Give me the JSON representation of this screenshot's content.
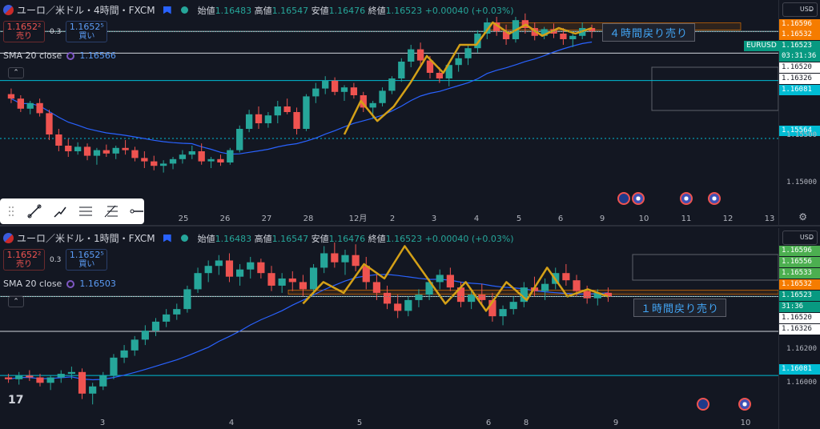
{
  "colors": {
    "up": "#26a69a",
    "down": "#ef5350",
    "sma": "#2962ff",
    "zig": "#d4a017",
    "bg": "#131722",
    "bull": "#089981"
  },
  "panes": [
    {
      "id": "4h",
      "title": "ユーロ／米ドル・4時間・FXCM",
      "ohlc": {
        "o_label": "始値",
        "o": "1.16483",
        "h_label": "高値",
        "h": "1.16547",
        "l_label": "安値",
        "l": "1.16476",
        "c_label": "終値",
        "c": "1.16523",
        "chg": "+0.00040 (+0.03%)"
      },
      "sell": {
        "price": "1.1652²",
        "label": "売り"
      },
      "buy": {
        "price": "1.1652⁵",
        "label": "買い"
      },
      "spread": "0.3",
      "sma_label": "SMA 20 close",
      "sma_value": "1.16566",
      "currency": "USD",
      "note": "４時間戻り売り",
      "price_labels": [
        {
          "text": "1.16596",
          "bg": "#f57c00"
        },
        {
          "text": "1.16532",
          "bg": "#f57c00"
        },
        {
          "text": "1.16523",
          "bg": "#089981"
        },
        {
          "text": "03:31:36",
          "bg": "#089981"
        },
        {
          "text": "1.16520",
          "bg": "#ffffff",
          "fg": "#131722"
        },
        {
          "text": "1.16326",
          "bg": "#ffffff",
          "fg": "#131722"
        },
        {
          "text": "1.16081",
          "bg": "#00bcd4"
        },
        {
          "text": "1.15564",
          "bg": "#00bcd4"
        }
      ],
      "symbol_tag": "EURUSD",
      "ticks": [
        "1.15500",
        "1.15000"
      ],
      "dates": [
        "25",
        "26",
        "27",
        "28",
        "12月",
        "2",
        "3",
        "4",
        "5",
        "6",
        "9",
        "10",
        "11",
        "12",
        "13"
      ],
      "candles": [
        [
          1.1596,
          1.1601,
          1.1588,
          1.1592
        ],
        [
          1.1592,
          1.1595,
          1.158,
          1.1583
        ],
        [
          1.1583,
          1.159,
          1.1578,
          1.1588
        ],
        [
          1.1588,
          1.1592,
          1.1576,
          1.1579
        ],
        [
          1.1579,
          1.1582,
          1.1555,
          1.156
        ],
        [
          1.156,
          1.1565,
          1.1545,
          1.155
        ],
        [
          1.155,
          1.1556,
          1.154,
          1.1545
        ],
        [
          1.1545,
          1.1553,
          1.1542,
          1.1549
        ],
        [
          1.1549,
          1.1552,
          1.1537,
          1.1541
        ],
        [
          1.1541,
          1.1548,
          1.1533,
          1.1546
        ],
        [
          1.1546,
          1.1551,
          1.154,
          1.1543
        ],
        [
          1.1543,
          1.155,
          1.1538,
          1.1548
        ],
        [
          1.1548,
          1.1555,
          1.1542,
          1.1546
        ],
        [
          1.1546,
          1.1549,
          1.1536,
          1.1539
        ],
        [
          1.1539,
          1.1545,
          1.153,
          1.1536
        ],
        [
          1.1536,
          1.1541,
          1.1528,
          1.1532
        ],
        [
          1.1532,
          1.1537,
          1.1526,
          1.1534
        ],
        [
          1.1534,
          1.154,
          1.1529,
          1.1538
        ],
        [
          1.1538,
          1.1546,
          1.1534,
          1.1542
        ],
        [
          1.1542,
          1.155,
          1.1538,
          1.1545
        ],
        [
          1.1545,
          1.1552,
          1.1533,
          1.1536
        ],
        [
          1.1536,
          1.154,
          1.153,
          1.1538
        ],
        [
          1.1538,
          1.1542,
          1.1532,
          1.1535
        ],
        [
          1.1535,
          1.1548,
          1.1533,
          1.1546
        ],
        [
          1.1546,
          1.1568,
          1.1544,
          1.1565
        ],
        [
          1.1565,
          1.1582,
          1.1562,
          1.1578
        ],
        [
          1.1578,
          1.1585,
          1.1565,
          1.157
        ],
        [
          1.157,
          1.158,
          1.1566,
          1.1577
        ],
        [
          1.1577,
          1.159,
          1.157,
          1.1585
        ],
        [
          1.1585,
          1.1592,
          1.1578,
          1.158
        ],
        [
          1.158,
          1.1584,
          1.156,
          1.1565
        ],
        [
          1.1565,
          1.1596,
          1.1563,
          1.1594
        ],
        [
          1.1594,
          1.1606,
          1.1588,
          1.1601
        ],
        [
          1.1601,
          1.1612,
          1.1596,
          1.1608
        ],
        [
          1.1608,
          1.1611,
          1.1595,
          1.1598
        ],
        [
          1.1598,
          1.1604,
          1.159,
          1.1602
        ],
        [
          1.1602,
          1.1606,
          1.1592,
          1.1595
        ],
        [
          1.1595,
          1.1598,
          1.158,
          1.1584
        ],
        [
          1.1584,
          1.159,
          1.1574,
          1.1588
        ],
        [
          1.1588,
          1.1602,
          1.1585,
          1.1599
        ],
        [
          1.1599,
          1.1612,
          1.1596,
          1.161
        ],
        [
          1.161,
          1.1628,
          1.1607,
          1.1625
        ],
        [
          1.1625,
          1.164,
          1.162,
          1.1636
        ],
        [
          1.1636,
          1.1642,
          1.1622,
          1.1626
        ],
        [
          1.1626,
          1.163,
          1.161,
          1.1615
        ],
        [
          1.1615,
          1.162,
          1.1606,
          1.161
        ],
        [
          1.161,
          1.1625,
          1.1603,
          1.1622
        ],
        [
          1.1622,
          1.1632,
          1.1616,
          1.1628
        ],
        [
          1.1628,
          1.164,
          1.1622,
          1.1637
        ],
        [
          1.1637,
          1.1653,
          1.1633,
          1.165
        ],
        [
          1.165,
          1.1664,
          1.1645,
          1.166
        ],
        [
          1.166,
          1.1665,
          1.1648,
          1.1652
        ],
        [
          1.1652,
          1.1658,
          1.164,
          1.1645
        ],
        [
          1.1645,
          1.1665,
          1.1642,
          1.1662
        ],
        [
          1.1662,
          1.1668,
          1.165,
          1.1655
        ],
        [
          1.1655,
          1.166,
          1.1644,
          1.1648
        ],
        [
          1.1648,
          1.1656,
          1.1645,
          1.1654
        ],
        [
          1.1654,
          1.1659,
          1.1646,
          1.165
        ],
        [
          1.165,
          1.1655,
          1.164,
          1.1645
        ],
        [
          1.1645,
          1.1652,
          1.1638,
          1.1648
        ],
        [
          1.1648,
          1.166,
          1.1645,
          1.1655
        ],
        [
          1.1655,
          1.1658,
          1.1646,
          1.1652
        ]
      ]
    },
    {
      "id": "1h",
      "title": "ユーロ／米ドル・1時間・FXCM",
      "ohlc": {
        "o_label": "始値",
        "o": "1.16483",
        "h_label": "高値",
        "h": "1.16547",
        "l_label": "安値",
        "l": "1.16476",
        "c_label": "終値",
        "c": "1.16523",
        "chg": "+0.00040 (+0.03%)"
      },
      "sell": {
        "price": "1.1652²",
        "label": "売り"
      },
      "buy": {
        "price": "1.1652⁵",
        "label": "買い"
      },
      "spread": "0.3",
      "sma_label": "SMA 20 close",
      "sma_value": "1.16503",
      "currency": "USD",
      "note": "１時間戻り売り",
      "price_labels": [
        {
          "text": "1.16596",
          "bg": "#4caf50"
        },
        {
          "text": "1.16556",
          "bg": "#4caf50"
        },
        {
          "text": "1.16533",
          "bg": "#4caf50"
        },
        {
          "text": "1.16532",
          "bg": "#f57c00"
        },
        {
          "text": "1.16523",
          "bg": "#089981"
        },
        {
          "text": "31:36",
          "bg": "#089981"
        },
        {
          "text": "1.16520",
          "bg": "#ffffff",
          "fg": "#131722"
        },
        {
          "text": "1.16326",
          "bg": "#ffffff",
          "fg": "#131722"
        },
        {
          "text": "1.16081",
          "bg": "#00bcd4"
        }
      ],
      "ticks": [
        "1.16200",
        "1.16000"
      ],
      "dates": [
        "3",
        "4",
        "5",
        "6",
        "8",
        "9",
        "10"
      ],
      "candles": [
        [
          1.1607,
          1.1609,
          1.1604,
          1.1606
        ],
        [
          1.1606,
          1.161,
          1.1603,
          1.1608
        ],
        [
          1.1608,
          1.1611,
          1.1605,
          1.1607
        ],
        [
          1.1607,
          1.1609,
          1.1602,
          1.1604
        ],
        [
          1.1604,
          1.1608,
          1.16,
          1.1607
        ],
        [
          1.1607,
          1.1611,
          1.1604,
          1.1609
        ],
        [
          1.1609,
          1.1613,
          1.1606,
          1.161
        ],
        [
          1.161,
          1.1612,
          1.1595,
          1.1598
        ],
        [
          1.1598,
          1.1604,
          1.1592,
          1.1602
        ],
        [
          1.1602,
          1.161,
          1.16,
          1.1608
        ],
        [
          1.1608,
          1.162,
          1.1606,
          1.1618
        ],
        [
          1.1618,
          1.1625,
          1.1615,
          1.1622
        ],
        [
          1.1622,
          1.163,
          1.1619,
          1.1628
        ],
        [
          1.1628,
          1.1636,
          1.1625,
          1.1633
        ],
        [
          1.1633,
          1.164,
          1.163,
          1.1638
        ],
        [
          1.1638,
          1.1645,
          1.1635,
          1.1642
        ],
        [
          1.1642,
          1.1648,
          1.1639,
          1.1645
        ],
        [
          1.1645,
          1.1658,
          1.1643,
          1.1656
        ],
        [
          1.1656,
          1.1668,
          1.1654,
          1.1665
        ],
        [
          1.1665,
          1.1672,
          1.166,
          1.1669
        ],
        [
          1.1669,
          1.1675,
          1.1664,
          1.1672
        ],
        [
          1.1672,
          1.1676,
          1.166,
          1.1663
        ],
        [
          1.1663,
          1.167,
          1.1658,
          1.1667
        ],
        [
          1.1667,
          1.1674,
          1.1662,
          1.1671
        ],
        [
          1.1671,
          1.1673,
          1.1662,
          1.1665
        ],
        [
          1.1665,
          1.1669,
          1.1655,
          1.1658
        ],
        [
          1.1658,
          1.1665,
          1.1654,
          1.1662
        ],
        [
          1.1662,
          1.1666,
          1.1655,
          1.166
        ],
        [
          1.166,
          1.1664,
          1.1652,
          1.1656
        ],
        [
          1.1656,
          1.167,
          1.1653,
          1.1668
        ],
        [
          1.1668,
          1.168,
          1.1665,
          1.1676
        ],
        [
          1.1676,
          1.1682,
          1.1668,
          1.1671
        ],
        [
          1.1671,
          1.1678,
          1.1664,
          1.1675
        ],
        [
          1.1675,
          1.1681,
          1.1666,
          1.1669
        ],
        [
          1.1669,
          1.1674,
          1.1656,
          1.166
        ],
        [
          1.166,
          1.1664,
          1.165,
          1.1654
        ],
        [
          1.1654,
          1.1658,
          1.1645,
          1.1648
        ],
        [
          1.1648,
          1.1653,
          1.164,
          1.1644
        ],
        [
          1.1644,
          1.1652,
          1.1641,
          1.165
        ],
        [
          1.165,
          1.1656,
          1.1646,
          1.1653
        ],
        [
          1.1653,
          1.1662,
          1.165,
          1.166
        ],
        [
          1.166,
          1.1667,
          1.1656,
          1.1664
        ],
        [
          1.1664,
          1.1668,
          1.1655,
          1.1657
        ],
        [
          1.1657,
          1.166,
          1.1646,
          1.1649
        ],
        [
          1.1649,
          1.1655,
          1.1645,
          1.1653
        ],
        [
          1.1653,
          1.1659,
          1.1647,
          1.165
        ],
        [
          1.165,
          1.1654,
          1.1638,
          1.1641
        ],
        [
          1.1641,
          1.1647,
          1.1636,
          1.1645
        ],
        [
          1.1645,
          1.1652,
          1.1642,
          1.1649
        ],
        [
          1.1649,
          1.166,
          1.1646,
          1.1657
        ],
        [
          1.1657,
          1.1663,
          1.1652,
          1.1655
        ],
        [
          1.1655,
          1.1662,
          1.165,
          1.1659
        ],
        [
          1.1659,
          1.1668,
          1.1656,
          1.1665
        ],
        [
          1.1665,
          1.167,
          1.1658,
          1.1661
        ],
        [
          1.1661,
          1.1664,
          1.1652,
          1.1655
        ],
        [
          1.1655,
          1.1658,
          1.1648,
          1.1651
        ],
        [
          1.1651,
          1.1656,
          1.1647,
          1.1654
        ],
        [
          1.1654,
          1.1657,
          1.1649,
          1.1652
        ]
      ]
    }
  ]
}
